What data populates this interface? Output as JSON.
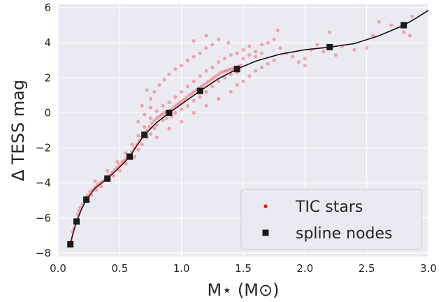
{
  "chart_data": {
    "type": "scatter",
    "xlabel": "M⋆ (M⊙)",
    "ylabel": "Δ TESS mag",
    "xlim": [
      0.0,
      3.0
    ],
    "ylim": [
      -8.2,
      6.2
    ],
    "xticks": [
      "0.0",
      "0.5",
      "1.0",
      "1.5",
      "2.0",
      "2.5",
      "3.0"
    ],
    "xtick_values": [
      0.0,
      0.5,
      1.0,
      1.5,
      2.0,
      2.5,
      3.0
    ],
    "yticks": [
      "−8",
      "−6",
      "−4",
      "−2",
      "0",
      "2",
      "4",
      "6"
    ],
    "ytick_values": [
      -8,
      -6,
      -4,
      -2,
      0,
      2,
      4,
      6
    ],
    "grid": true,
    "legend_position": "bottom-right",
    "colors": {
      "background": "#eaeaf2",
      "grid": "#ffffff",
      "stars": "#ff0000",
      "nodes": "#1a1a1a",
      "curve": "#111111"
    },
    "series": [
      {
        "name": "TIC stars",
        "kind": "scatter",
        "points": [
          [
            0.1,
            -7.6
          ],
          [
            0.11,
            -7.3
          ],
          [
            0.12,
            -6.8
          ],
          [
            0.13,
            -6.6
          ],
          [
            0.14,
            -6.3
          ],
          [
            0.15,
            -6.1
          ],
          [
            0.16,
            -5.8
          ],
          [
            0.17,
            -5.6
          ],
          [
            0.18,
            -5.4
          ],
          [
            0.2,
            -5.2
          ],
          [
            0.22,
            -4.9
          ],
          [
            0.24,
            -4.7
          ],
          [
            0.26,
            -4.5
          ],
          [
            0.28,
            -4.4
          ],
          [
            0.3,
            -4.25
          ],
          [
            0.32,
            -4.1
          ],
          [
            0.34,
            -4.0
          ],
          [
            0.36,
            -3.9
          ],
          [
            0.38,
            -3.8
          ],
          [
            0.4,
            -3.7
          ],
          [
            0.42,
            -3.55
          ],
          [
            0.44,
            -3.4
          ],
          [
            0.46,
            -3.25
          ],
          [
            0.48,
            -3.1
          ],
          [
            0.5,
            -2.95
          ],
          [
            0.52,
            -2.8
          ],
          [
            0.54,
            -2.7
          ],
          [
            0.56,
            -2.55
          ],
          [
            0.58,
            -2.4
          ],
          [
            0.6,
            -2.2
          ],
          [
            0.62,
            -2.0
          ],
          [
            0.64,
            -1.8
          ],
          [
            0.66,
            -1.6
          ],
          [
            0.68,
            -1.4
          ],
          [
            0.7,
            -1.2
          ],
          [
            0.72,
            -1.0
          ],
          [
            0.74,
            -0.8
          ],
          [
            0.76,
            -0.6
          ],
          [
            0.78,
            -0.45
          ],
          [
            0.8,
            -0.3
          ],
          [
            0.82,
            -0.2
          ],
          [
            0.84,
            -0.1
          ],
          [
            0.86,
            0.0
          ],
          [
            0.88,
            0.05
          ],
          [
            0.9,
            0.1
          ],
          [
            0.92,
            0.2
          ],
          [
            0.94,
            0.35
          ],
          [
            0.96,
            0.45
          ],
          [
            0.98,
            0.55
          ],
          [
            1.0,
            0.65
          ],
          [
            1.02,
            0.75
          ],
          [
            1.04,
            0.85
          ],
          [
            1.06,
            1.0
          ],
          [
            1.08,
            1.1
          ],
          [
            1.1,
            1.2
          ],
          [
            1.12,
            1.3
          ],
          [
            1.14,
            1.4
          ],
          [
            1.16,
            1.5
          ],
          [
            1.18,
            1.6
          ],
          [
            1.2,
            1.7
          ],
          [
            1.22,
            1.8
          ],
          [
            1.24,
            1.9
          ],
          [
            1.26,
            2.0
          ],
          [
            1.28,
            2.1
          ],
          [
            1.3,
            2.2
          ],
          [
            1.32,
            2.3
          ],
          [
            1.34,
            2.35
          ],
          [
            1.36,
            2.4
          ],
          [
            1.38,
            2.45
          ],
          [
            1.4,
            2.5
          ],
          [
            1.42,
            2.55
          ],
          [
            1.44,
            2.6
          ],
          [
            1.46,
            2.65
          ],
          [
            1.48,
            2.7
          ],
          [
            0.27,
            -4.7
          ],
          [
            0.31,
            -4.4
          ],
          [
            0.35,
            -4.2
          ],
          [
            0.45,
            -3.6
          ],
          [
            0.5,
            -3.3
          ],
          [
            0.55,
            -2.9
          ],
          [
            0.6,
            -2.6
          ],
          [
            0.62,
            -2.5
          ],
          [
            0.65,
            -2.1
          ],
          [
            0.68,
            -1.8
          ],
          [
            0.72,
            -1.4
          ],
          [
            0.75,
            -1.2
          ],
          [
            0.78,
            -0.9
          ],
          [
            0.8,
            -0.7
          ],
          [
            0.85,
            -0.4
          ],
          [
            0.88,
            -0.3
          ],
          [
            0.92,
            -0.2
          ],
          [
            0.95,
            0.0
          ],
          [
            1.0,
            0.2
          ],
          [
            1.05,
            0.4
          ],
          [
            1.1,
            0.7
          ],
          [
            1.15,
            0.9
          ],
          [
            1.2,
            1.2
          ],
          [
            1.25,
            1.5
          ],
          [
            1.3,
            1.8
          ],
          [
            1.35,
            2.0
          ],
          [
            1.4,
            2.2
          ],
          [
            1.45,
            2.3
          ],
          [
            0.3,
            -3.9
          ],
          [
            0.4,
            -3.3
          ],
          [
            0.48,
            -2.8
          ],
          [
            0.55,
            -2.3
          ],
          [
            0.6,
            -1.8
          ],
          [
            0.65,
            -1.3
          ],
          [
            0.7,
            -0.8
          ],
          [
            0.75,
            -0.3
          ],
          [
            0.8,
            0.1
          ],
          [
            0.85,
            0.4
          ],
          [
            0.9,
            0.6
          ],
          [
            0.95,
            0.9
          ],
          [
            1.0,
            1.2
          ],
          [
            1.05,
            1.5
          ],
          [
            1.1,
            1.8
          ],
          [
            1.15,
            2.1
          ],
          [
            1.2,
            2.4
          ],
          [
            1.25,
            2.6
          ],
          [
            1.3,
            2.9
          ],
          [
            1.35,
            3.1
          ],
          [
            1.4,
            3.3
          ],
          [
            1.45,
            3.4
          ],
          [
            1.5,
            3.6
          ],
          [
            1.55,
            3.8
          ],
          [
            1.6,
            3.5
          ],
          [
            1.65,
            3.9
          ],
          [
            0.72,
            1.3
          ],
          [
            0.75,
            0.8
          ],
          [
            0.78,
            1.2
          ],
          [
            0.82,
            1.6
          ],
          [
            0.86,
            1.9
          ],
          [
            0.9,
            2.2
          ],
          [
            0.95,
            2.5
          ],
          [
            1.0,
            2.7
          ],
          [
            1.05,
            3.0
          ],
          [
            1.1,
            3.2
          ],
          [
            1.15,
            3.4
          ],
          [
            1.2,
            3.7
          ],
          [
            1.25,
            3.9
          ],
          [
            1.3,
            4.2
          ],
          [
            1.2,
            4.4
          ],
          [
            1.1,
            4.1
          ],
          [
            1.38,
            4.0
          ],
          [
            0.65,
            -0.5
          ],
          [
            0.7,
            -0.1
          ],
          [
            0.75,
            0.3
          ],
          [
            0.68,
            0.4
          ],
          [
            0.8,
            -1.4
          ],
          [
            0.9,
            -0.9
          ],
          [
            1.0,
            -0.5
          ],
          [
            1.1,
            0.0
          ],
          [
            1.2,
            0.4
          ],
          [
            1.3,
            0.8
          ],
          [
            1.4,
            1.2
          ],
          [
            1.45,
            1.6
          ],
          [
            1.5,
            1.8
          ],
          [
            1.55,
            2.1
          ],
          [
            1.6,
            2.4
          ],
          [
            1.65,
            2.6
          ],
          [
            1.7,
            2.8
          ],
          [
            1.75,
            3.0
          ],
          [
            1.5,
            3.1
          ],
          [
            1.55,
            3.3
          ],
          [
            1.6,
            3.2
          ],
          [
            1.65,
            3.4
          ],
          [
            1.7,
            4.0
          ],
          [
            1.75,
            4.2
          ],
          [
            1.8,
            3.7
          ],
          [
            1.85,
            3.4
          ],
          [
            1.9,
            3.2
          ],
          [
            1.95,
            2.9
          ],
          [
            2.0,
            3.1
          ],
          [
            2.05,
            3.6
          ],
          [
            2.1,
            3.9
          ],
          [
            2.15,
            3.5
          ],
          [
            2.25,
            3.3
          ],
          [
            2.3,
            3.8
          ],
          [
            2.4,
            3.6
          ],
          [
            2.5,
            3.7
          ],
          [
            2.55,
            4.4
          ],
          [
            2.6,
            5.2
          ],
          [
            2.7,
            5.0
          ],
          [
            2.8,
            4.6
          ],
          [
            2.85,
            4.4
          ],
          [
            2.87,
            5.5
          ],
          [
            2.2,
            4.6
          ],
          [
            1.78,
            4.7
          ],
          [
            2.0,
            2.7
          ]
        ]
      },
      {
        "name": "spline nodes",
        "kind": "nodes",
        "points": [
          [
            0.1,
            -7.5
          ],
          [
            0.15,
            -6.2
          ],
          [
            0.23,
            -4.95
          ],
          [
            0.4,
            -3.75
          ],
          [
            0.58,
            -2.5
          ],
          [
            0.7,
            -1.25
          ],
          [
            0.9,
            0.0
          ],
          [
            1.15,
            1.25
          ],
          [
            1.45,
            2.5
          ],
          [
            2.2,
            3.75
          ],
          [
            2.8,
            5.0
          ]
        ]
      },
      {
        "kind": "curve",
        "points": [
          [
            0.1,
            -7.5
          ],
          [
            0.12,
            -6.9
          ],
          [
            0.15,
            -6.2
          ],
          [
            0.19,
            -5.5
          ],
          [
            0.23,
            -4.95
          ],
          [
            0.3,
            -4.3
          ],
          [
            0.4,
            -3.75
          ],
          [
            0.5,
            -3.1
          ],
          [
            0.58,
            -2.5
          ],
          [
            0.64,
            -1.85
          ],
          [
            0.7,
            -1.25
          ],
          [
            0.8,
            -0.55
          ],
          [
            0.9,
            0.0
          ],
          [
            1.02,
            0.6
          ],
          [
            1.15,
            1.25
          ],
          [
            1.3,
            1.95
          ],
          [
            1.45,
            2.5
          ],
          [
            1.6,
            2.95
          ],
          [
            1.8,
            3.35
          ],
          [
            2.0,
            3.6
          ],
          [
            2.2,
            3.75
          ],
          [
            2.4,
            3.95
          ],
          [
            2.6,
            4.4
          ],
          [
            2.8,
            5.0
          ],
          [
            2.9,
            5.4
          ],
          [
            3.0,
            5.85
          ]
        ]
      }
    ]
  }
}
